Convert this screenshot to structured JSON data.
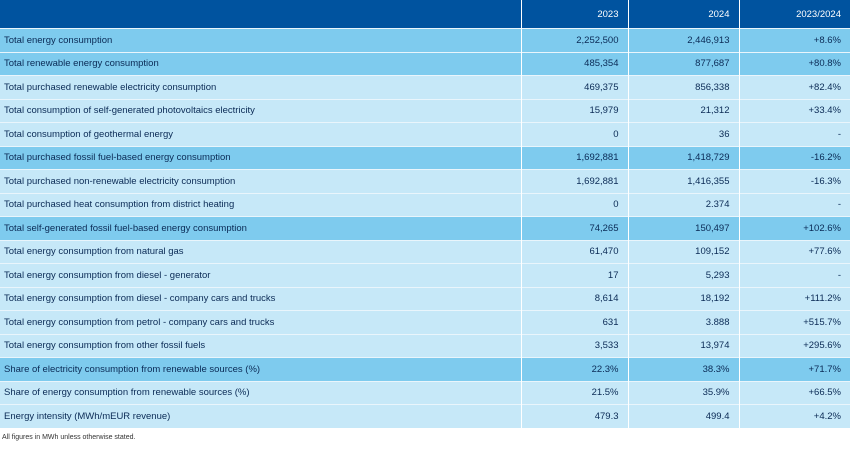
{
  "table": {
    "headers": [
      "",
      "2023",
      "2024",
      "2023/2024"
    ],
    "rows": [
      {
        "label": "Total energy consumption",
        "y2023": "2,252,500",
        "y2024": "2,446,913",
        "change": "+8.6%",
        "style": "dark"
      },
      {
        "label": "Total renewable energy consumption",
        "y2023": "485,354",
        "y2024": "877,687",
        "change": "+80.8%",
        "style": "dark"
      },
      {
        "label": "Total purchased renewable electricity consumption",
        "y2023": "469,375",
        "y2024": "856,338",
        "change": "+82.4%",
        "style": "light"
      },
      {
        "label": "Total consumption of self-generated photovoltaics electricity",
        "y2023": "15,979",
        "y2024": "21,312",
        "change": "+33.4%",
        "style": "light"
      },
      {
        "label": "Total consumption of geothermal energy",
        "y2023": "0",
        "y2024": "36",
        "change": "-",
        "style": "light"
      },
      {
        "label": "Total purchased fossil fuel-based energy consumption",
        "y2023": "1,692,881",
        "y2024": "1,418,729",
        "change": "-16.2%",
        "style": "dark"
      },
      {
        "label": "Total purchased non-renewable electricity consumption",
        "y2023": "1,692,881",
        "y2024": "1,416,355",
        "change": "-16.3%",
        "style": "light"
      },
      {
        "label": "Total purchased heat consumption from district heating",
        "y2023": "0",
        "y2024": "2.374",
        "change": "-",
        "style": "light"
      },
      {
        "label": "Total self-generated fossil fuel-based energy consumption",
        "y2023": "74,265",
        "y2024": "150,497",
        "change": "+102.6%",
        "style": "dark"
      },
      {
        "label": "Total energy consumption from natural gas",
        "y2023": "61,470",
        "y2024": "109,152",
        "change": "+77.6%",
        "style": "light"
      },
      {
        "label": "Total energy consumption from diesel - generator",
        "y2023": "17",
        "y2024": "5,293",
        "change": "-",
        "style": "light"
      },
      {
        "label": "Total energy consumption from diesel - company cars and trucks",
        "y2023": "8,614",
        "y2024": "18,192",
        "change": "+111.2%",
        "style": "light"
      },
      {
        "label": "Total energy consumption from petrol - company cars and trucks",
        "y2023": "631",
        "y2024": "3.888",
        "change": "+515.7%",
        "style": "light"
      },
      {
        "label": "Total energy consumption from other fossil fuels",
        "y2023": "3,533",
        "y2024": "13,974",
        "change": "+295.6%",
        "style": "light"
      },
      {
        "label": "Share of electricity consumption from renewable sources (%)",
        "y2023": "22.3%",
        "y2024": "38.3%",
        "change": "+71.7%",
        "style": "dark"
      },
      {
        "label": "Share of energy consumption from renewable sources (%)",
        "y2023": "21.5%",
        "y2024": "35.9%",
        "change": "+66.5%",
        "style": "light"
      },
      {
        "label": "Energy intensity (MWh/mEUR revenue)",
        "y2023": "479.3",
        "y2024": "499.4",
        "change": "+4.2%",
        "style": "light"
      }
    ]
  },
  "footnote": "All figures in MWh unless otherwise stated.",
  "colors": {
    "header": "#00539f",
    "dark_row": "#7ecbee",
    "light_row": "#c6e8f8"
  }
}
